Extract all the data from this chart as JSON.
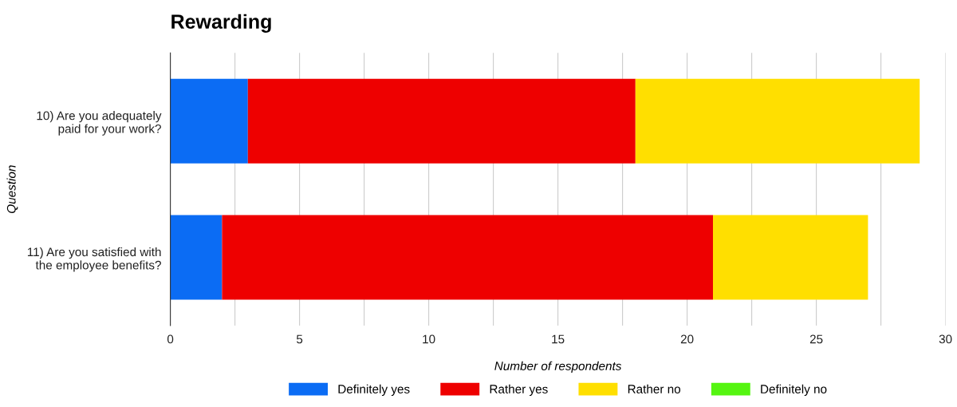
{
  "chart_data": {
    "type": "bar",
    "orientation": "horizontal",
    "stacked": true,
    "title": "Rewarding",
    "xlabel": "Number of respondents",
    "ylabel": "Question",
    "categories": [
      "10) Are you adequately\npaid for your work?",
      "11) Are you satisfied with\nthe employee benefits?"
    ],
    "series": [
      {
        "name": "Definitely yes",
        "color": "#0b6cf4",
        "values": [
          3,
          2
        ]
      },
      {
        "name": "Rather yes",
        "color": "#ee0000",
        "values": [
          15,
          19
        ]
      },
      {
        "name": "Rather no",
        "color": "#ffdf00",
        "values": [
          11,
          6
        ]
      },
      {
        "name": "Definitely no",
        "color": "#55f511",
        "values": [
          0,
          0
        ]
      }
    ],
    "xlim": [
      0,
      30
    ],
    "xticks": [
      0,
      {
        "value": 2.5,
        "label": null
      },
      5,
      {
        "value": 7.5,
        "label": null
      },
      10,
      {
        "value": 12.5,
        "label": null
      },
      15,
      {
        "value": 17.5,
        "label": null
      },
      20,
      {
        "value": 22.5,
        "label": null
      },
      25,
      {
        "value": 27.5,
        "label": null
      },
      30
    ],
    "grid": "x",
    "legend": "bottom"
  }
}
